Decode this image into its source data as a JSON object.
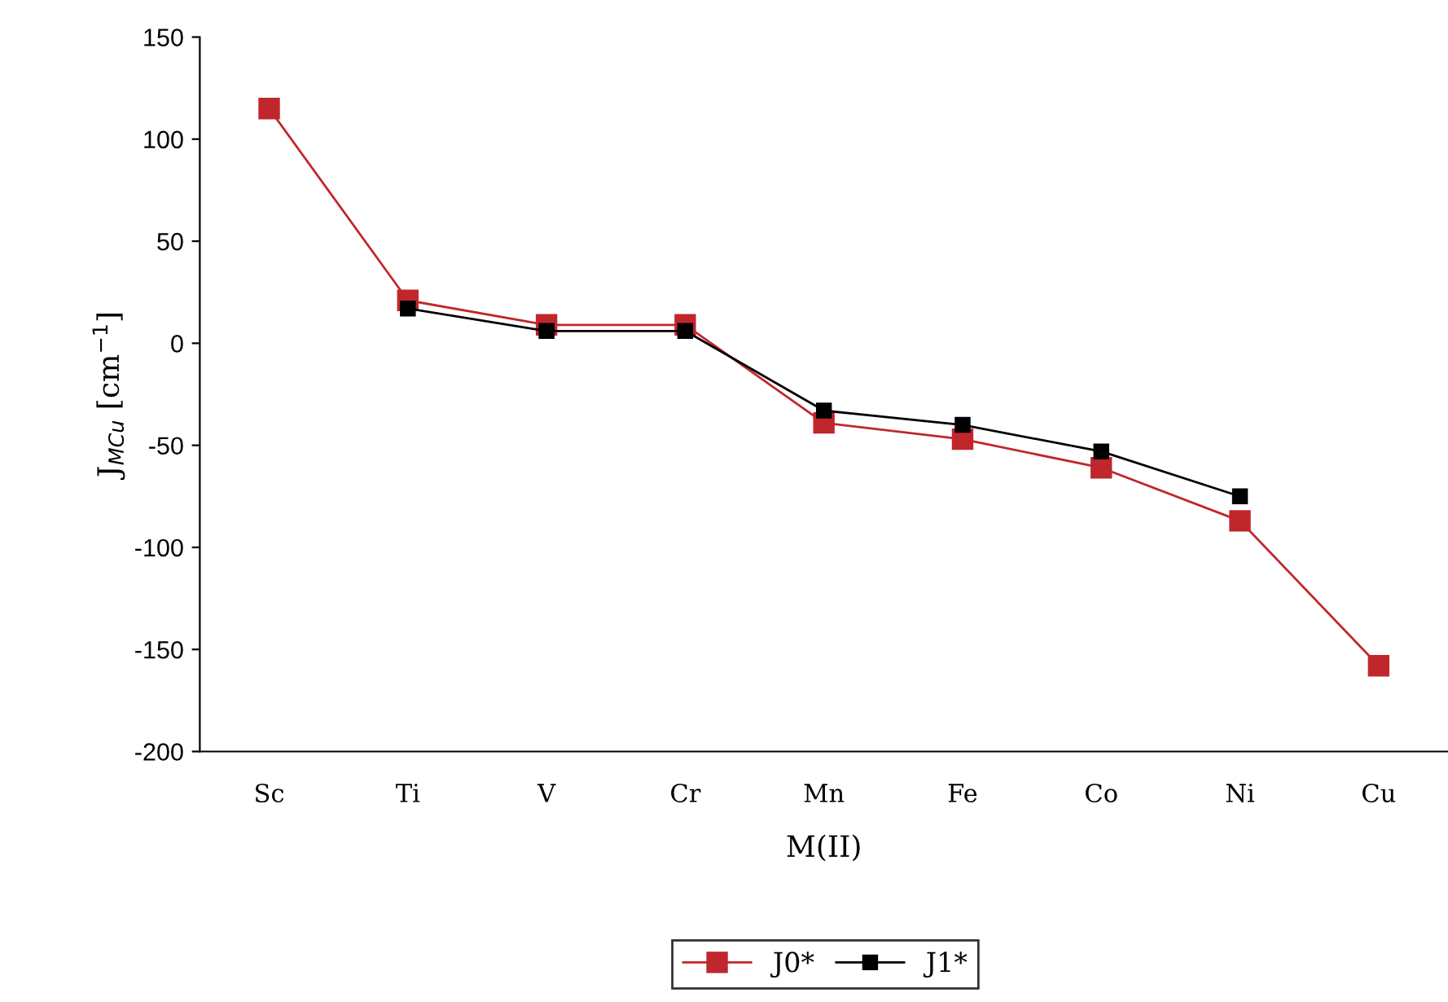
{
  "chart_data": {
    "type": "line",
    "xlabel": "M(II)",
    "ylabel": "J$_{MCu}$ [cm$^{−1}$]",
    "categories": [
      "Sc",
      "Ti",
      "V",
      "Cr",
      "Mn",
      "Fe",
      "Co",
      "Ni",
      "Cu"
    ],
    "series": [
      {
        "name": "J0*",
        "color": "#c0272d",
        "values": [
          115,
          21,
          9,
          9,
          -39,
          -47,
          -61,
          -87,
          -158
        ]
      },
      {
        "name": "J1*",
        "color": "#000000",
        "values": [
          null,
          17,
          6,
          6,
          -33,
          -40,
          -53,
          -75,
          null
        ]
      }
    ],
    "ylim": [
      -200,
      150
    ],
    "yticks": [
      -200,
      -150,
      -100,
      -50,
      0,
      50,
      100,
      150
    ],
    "grid": false,
    "legend": "bottom",
    "marker": "square",
    "line_style": "solid"
  }
}
